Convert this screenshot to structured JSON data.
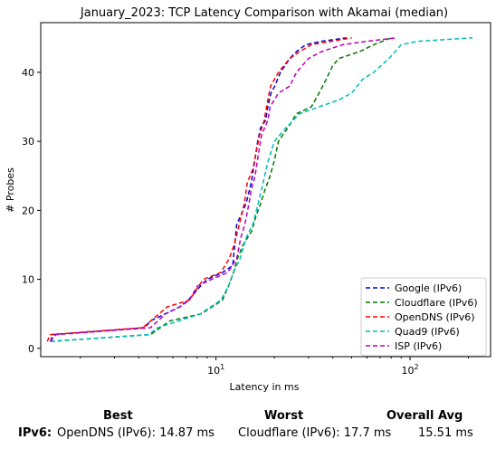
{
  "chart_data": {
    "type": "line",
    "title": "January_2023: TCP Latency Comparison with Akamai (median)",
    "xlabel": "Latency in ms",
    "ylabel": "# Probes",
    "xscale": "log",
    "xlim": [
      1.25,
      260
    ],
    "ylim": [
      -1.2,
      47.2
    ],
    "xticks": [
      {
        "value": 10,
        "label": "10^1"
      },
      {
        "value": 100,
        "label": "10^2"
      }
    ],
    "yticks": [
      0,
      10,
      20,
      30,
      40
    ],
    "grid": false,
    "legend_position": "lower-right",
    "series": [
      {
        "name": "Google (IPv6)",
        "color": "#0000cc",
        "points": [
          [
            1.4,
            1
          ],
          [
            1.45,
            2
          ],
          [
            4.3,
            3
          ],
          [
            4.6,
            4
          ],
          [
            6.5,
            6
          ],
          [
            7.2,
            7
          ],
          [
            8.3,
            9
          ],
          [
            9,
            10
          ],
          [
            10.8,
            11
          ],
          [
            12.2,
            12
          ],
          [
            12.5,
            15
          ],
          [
            12.8,
            18
          ],
          [
            13.3,
            19
          ],
          [
            14.3,
            21
          ],
          [
            15.2,
            24
          ],
          [
            15.8,
            27
          ],
          [
            16.4,
            30
          ],
          [
            17,
            32
          ],
          [
            18,
            33
          ],
          [
            18.5,
            35
          ],
          [
            19.2,
            37
          ],
          [
            20.1,
            38
          ],
          [
            21.5,
            40
          ],
          [
            24,
            42
          ],
          [
            26,
            43
          ],
          [
            29,
            44
          ],
          [
            35,
            44.5
          ],
          [
            47,
            45
          ]
        ]
      },
      {
        "name": "Cloudflare (IPv6)",
        "color": "#007700",
        "points": [
          [
            1.4,
            1
          ],
          [
            4.6,
            2
          ],
          [
            5.8,
            4
          ],
          [
            8.4,
            5
          ],
          [
            10.8,
            7
          ],
          [
            11.6,
            9
          ],
          [
            12.3,
            11
          ],
          [
            12.9,
            13
          ],
          [
            13.8,
            15
          ],
          [
            15.3,
            17
          ],
          [
            16,
            19
          ],
          [
            17,
            21
          ],
          [
            17.9,
            23
          ],
          [
            19,
            25
          ],
          [
            19.9,
            27
          ],
          [
            21,
            30
          ],
          [
            23.5,
            32
          ],
          [
            26,
            34
          ],
          [
            31,
            35
          ],
          [
            34,
            37
          ],
          [
            37,
            39
          ],
          [
            40,
            41
          ],
          [
            43,
            42
          ],
          [
            55,
            43
          ],
          [
            65,
            44
          ],
          [
            80,
            45
          ]
        ]
      },
      {
        "name": "OpenDNS (IPv6)",
        "color": "#ff0000",
        "points": [
          [
            1.35,
            1
          ],
          [
            1.4,
            2
          ],
          [
            4.2,
            3
          ],
          [
            5.6,
            6
          ],
          [
            7.3,
            7
          ],
          [
            8.6,
            10
          ],
          [
            10.6,
            11
          ],
          [
            11.7,
            13
          ],
          [
            12.4,
            15
          ],
          [
            13.2,
            18
          ],
          [
            14,
            21
          ],
          [
            14.5,
            24
          ],
          [
            15.5,
            26
          ],
          [
            16,
            28
          ],
          [
            16.8,
            31
          ],
          [
            17.7,
            33
          ],
          [
            18.5,
            36
          ],
          [
            19.1,
            38
          ],
          [
            21,
            40
          ],
          [
            24,
            42
          ],
          [
            27,
            43
          ],
          [
            31,
            44
          ],
          [
            50,
            45
          ]
        ]
      },
      {
        "name": "Quad9 (IPv6)",
        "color": "#00bbbb",
        "points": [
          [
            1.4,
            1
          ],
          [
            4.5,
            2
          ],
          [
            5,
            3
          ],
          [
            8.3,
            5
          ],
          [
            10.6,
            7
          ],
          [
            11.6,
            9
          ],
          [
            12.3,
            11
          ],
          [
            13.3,
            13
          ],
          [
            14.3,
            16
          ],
          [
            15.5,
            18
          ],
          [
            16.5,
            21
          ],
          [
            17.5,
            24
          ],
          [
            18.5,
            27
          ],
          [
            20,
            30
          ],
          [
            23,
            32
          ],
          [
            27,
            34
          ],
          [
            34,
            35
          ],
          [
            43,
            36
          ],
          [
            50,
            37
          ],
          [
            57,
            39
          ],
          [
            65,
            40
          ],
          [
            78,
            42
          ],
          [
            90,
            44
          ],
          [
            110,
            44.5
          ],
          [
            210,
            45
          ]
        ]
      },
      {
        "name": "ISP (IPv6)",
        "color": "#bb00bb",
        "points": [
          [
            1.4,
            1
          ],
          [
            1.5,
            2
          ],
          [
            4.6,
            3
          ],
          [
            5.5,
            5
          ],
          [
            6.5,
            6
          ],
          [
            7.3,
            7
          ],
          [
            8,
            9
          ],
          [
            9.5,
            10
          ],
          [
            11.5,
            11
          ],
          [
            12.8,
            13
          ],
          [
            13.4,
            16
          ],
          [
            14.1,
            18
          ],
          [
            14.8,
            21
          ],
          [
            15.2,
            23
          ],
          [
            15.9,
            25
          ],
          [
            16.5,
            28
          ],
          [
            17.2,
            31
          ],
          [
            18.5,
            33
          ],
          [
            19,
            35
          ],
          [
            21,
            37
          ],
          [
            24,
            38
          ],
          [
            26,
            40
          ],
          [
            30,
            42
          ],
          [
            35,
            43
          ],
          [
            45,
            44
          ],
          [
            60,
            44.5
          ],
          [
            85,
            45
          ]
        ]
      }
    ]
  },
  "summary": {
    "headers": {
      "best": "Best",
      "worst": "Worst",
      "avg": "Overall Avg"
    },
    "row_label": "IPv6:",
    "best": "OpenDNS (IPv6): 14.87 ms",
    "worst": "Cloudflare (IPv6): 17.7 ms",
    "avg": "15.51 ms"
  }
}
